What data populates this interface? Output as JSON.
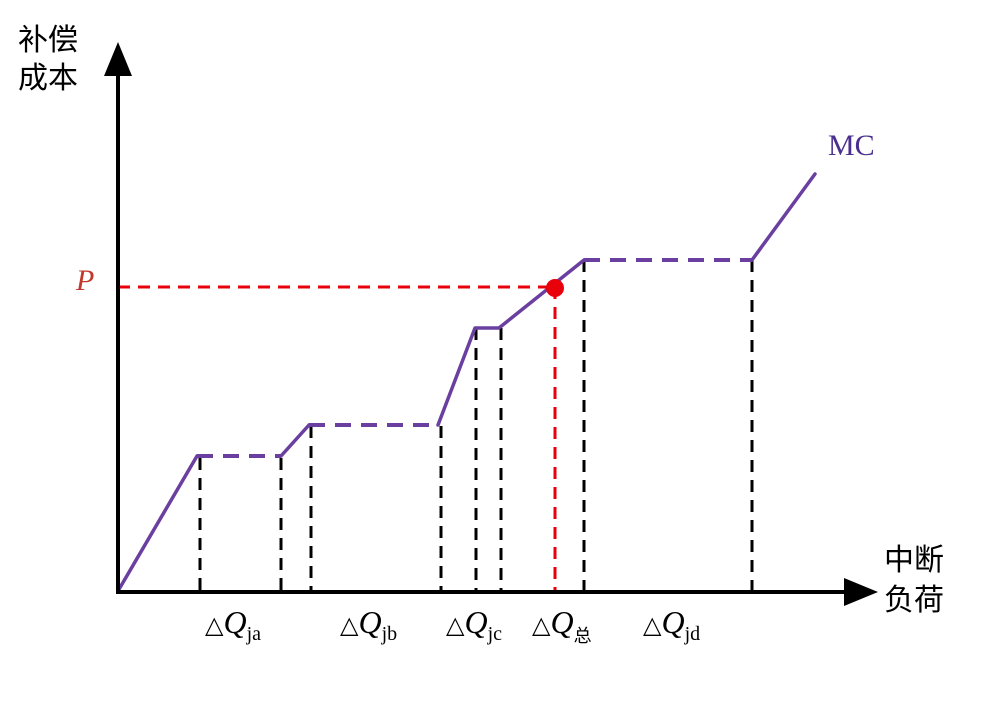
{
  "y_axis": {
    "label_line1": "补偿",
    "label_line2": "成本"
  },
  "x_axis": {
    "label_line1": "中断",
    "label_line2": "负荷"
  },
  "curve": {
    "name": "MC"
  },
  "price": {
    "label": "P"
  },
  "segments": [
    {
      "delta": "△",
      "symbol": "Q",
      "subscript": "ja"
    },
    {
      "delta": "△",
      "symbol": "Q",
      "subscript": "jb"
    },
    {
      "delta": "△",
      "symbol": "Q",
      "subscript": "jc"
    },
    {
      "delta": "△",
      "symbol": "Q",
      "subscript": "总"
    },
    {
      "delta": "△",
      "symbol": "Q",
      "subscript": "jd"
    }
  ],
  "colors": {
    "curve": "#6B3FA0",
    "price_line": "#E8000B",
    "axis": "#000000",
    "price_label": "#C0392B",
    "curve_label": "#4B2F8F"
  }
}
